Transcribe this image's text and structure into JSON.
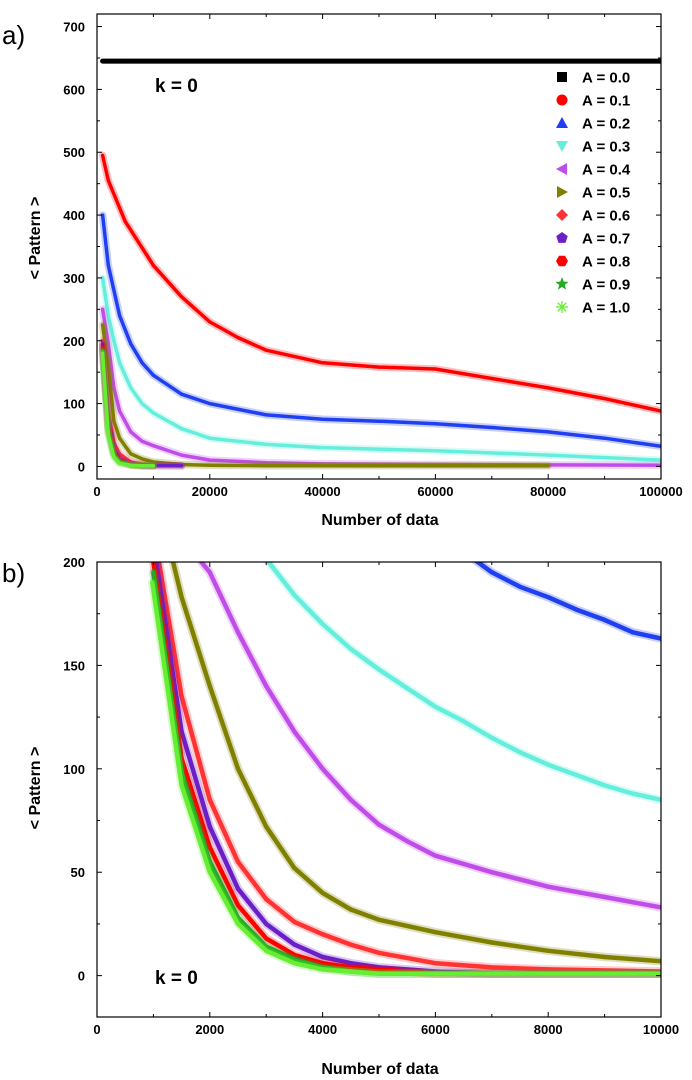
{
  "chart_data": [
    {
      "panel": "a)",
      "type": "line",
      "annotation": "k = 0",
      "xlabel": "Number of data",
      "ylabel": "< Pattern >",
      "xlim": [
        0,
        100000
      ],
      "ylim": [
        -20,
        720
      ],
      "xticks": [
        0,
        20000,
        40000,
        60000,
        80000,
        100000
      ],
      "xtick_labels": [
        "0",
        "20000",
        "40000",
        "60000",
        "80000",
        "100000"
      ],
      "yticks": [
        0,
        100,
        200,
        300,
        400,
        500,
        600,
        700
      ],
      "ytick_labels": [
        "0",
        "100",
        "200",
        "300",
        "400",
        "500",
        "600",
        "700"
      ],
      "legend_position": "top-right",
      "series": [
        {
          "name": "A = 0.0",
          "label": "A = 0.0",
          "color": "#000000",
          "marker": "square",
          "x": [
            1000,
            100000
          ],
          "y": [
            645,
            645
          ]
        },
        {
          "name": "A = 0.1",
          "label": "A = 0.1",
          "color": "#ff0000",
          "marker": "circle",
          "x": [
            1000,
            2000,
            5000,
            10000,
            15000,
            20000,
            25000,
            30000,
            40000,
            50000,
            60000,
            70000,
            80000,
            90000,
            100000
          ],
          "y": [
            495,
            455,
            390,
            320,
            270,
            230,
            205,
            185,
            165,
            158,
            155,
            140,
            125,
            108,
            88
          ]
        },
        {
          "name": "A = 0.2",
          "label": "A = 0.2",
          "color": "#1f3ff0",
          "marker": "triangle-up",
          "x": [
            1000,
            2000,
            4000,
            6000,
            8000,
            10000,
            15000,
            20000,
            30000,
            40000,
            50000,
            60000,
            70000,
            80000,
            90000,
            100000
          ],
          "y": [
            400,
            320,
            240,
            195,
            165,
            145,
            115,
            100,
            82,
            75,
            72,
            68,
            62,
            55,
            45,
            32
          ]
        },
        {
          "name": "A = 0.3",
          "label": "A = 0.3",
          "color": "#66eedd",
          "marker": "triangle-down",
          "x": [
            1000,
            2000,
            3000,
            4000,
            6000,
            8000,
            10000,
            15000,
            20000,
            30000,
            40000,
            60000,
            80000,
            100000
          ],
          "y": [
            300,
            240,
            200,
            165,
            125,
            100,
            85,
            60,
            45,
            35,
            30,
            25,
            18,
            10
          ]
        },
        {
          "name": "A = 0.4",
          "label": "A = 0.4",
          "color": "#c04de8",
          "marker": "triangle-left",
          "x": [
            1000,
            2000,
            3000,
            4000,
            6000,
            8000,
            10000,
            15000,
            20000,
            30000,
            40000,
            60000,
            100000
          ],
          "y": [
            250,
            195,
            125,
            88,
            55,
            40,
            33,
            18,
            10,
            6,
            4,
            3,
            2
          ]
        },
        {
          "name": "A = 0.5",
          "label": "A = 0.5",
          "color": "#808000",
          "marker": "triangle-right",
          "x": [
            1000,
            2000,
            3000,
            4000,
            6000,
            8000,
            10000,
            15000,
            20000,
            30000,
            40000,
            60000,
            80000
          ],
          "y": [
            225,
            160,
            72,
            45,
            20,
            12,
            7,
            3,
            2,
            1,
            1,
            1,
            1
          ]
        },
        {
          "name": "A = 0.6",
          "label": "A = 0.6",
          "color": "#ff3333",
          "marker": "diamond",
          "x": [
            1000,
            2000,
            3000,
            4000,
            6000,
            8000,
            10000,
            15000
          ],
          "y": [
            200,
            85,
            38,
            20,
            7,
            3,
            2,
            1
          ]
        },
        {
          "name": "A = 0.7",
          "label": "A = 0.7",
          "color": "#6a1fc8",
          "marker": "pentagon",
          "x": [
            1000,
            2000,
            3000,
            4000,
            6000,
            8000,
            10000,
            15000
          ],
          "y": [
            195,
            75,
            28,
            12,
            4,
            2,
            1,
            1
          ]
        },
        {
          "name": "A = 0.8",
          "label": "A = 0.8",
          "color": "#ff0000",
          "marker": "hexagon",
          "x": [
            1000,
            2000,
            3000,
            4000,
            6000,
            8000,
            10000
          ],
          "y": [
            190,
            62,
            22,
            9,
            3,
            1,
            1
          ]
        },
        {
          "name": "A = 0.9",
          "label": "A = 0.9",
          "color": "#22aa22",
          "marker": "star",
          "x": [
            1000,
            2000,
            3000,
            4000,
            6000,
            8000,
            10000
          ],
          "y": [
            185,
            55,
            18,
            7,
            2,
            1,
            1
          ]
        },
        {
          "name": "A = 1.0",
          "label": "A = 1.0",
          "color": "#66ee33",
          "marker": "asterisk",
          "x": [
            1000,
            2000,
            3000,
            4000,
            6000,
            8000,
            10000
          ],
          "y": [
            180,
            50,
            15,
            5,
            2,
            1,
            1
          ]
        }
      ]
    },
    {
      "panel": "b)",
      "type": "line",
      "annotation": "k = 0",
      "xlabel": "Number of data",
      "ylabel": "< Pattern >",
      "xlim": [
        0,
        10000
      ],
      "ylim": [
        -20,
        200
      ],
      "xticks": [
        0,
        2000,
        4000,
        6000,
        8000,
        10000
      ],
      "xtick_labels": [
        "0",
        "2000",
        "4000",
        "6000",
        "8000",
        "10000"
      ],
      "yticks": [
        0,
        50,
        100,
        150,
        200
      ],
      "ytick_labels": [
        "0",
        "50",
        "100",
        "150",
        "200"
      ],
      "series": [
        {
          "name": "A = 0.2",
          "color": "#1f3ff0",
          "x": [
            6500,
            7000,
            7500,
            8000,
            8500,
            9000,
            9500,
            10000
          ],
          "y": [
            205,
            195,
            188,
            183,
            177,
            172,
            166,
            163
          ]
        },
        {
          "name": "A = 0.3",
          "color": "#66eedd",
          "x": [
            2900,
            3500,
            4000,
            4500,
            5000,
            5500,
            6000,
            6500,
            7000,
            7500,
            8000,
            8500,
            9000,
            9500,
            10000
          ],
          "y": [
            205,
            184,
            170,
            158,
            148,
            139,
            130,
            123,
            115,
            108,
            102,
            97,
            92,
            88,
            85
          ]
        },
        {
          "name": "A = 0.4",
          "color": "#c04de8",
          "x": [
            1850,
            2000,
            2500,
            3000,
            3500,
            4000,
            4500,
            5000,
            5500,
            6000,
            7000,
            8000,
            9000,
            10000
          ],
          "y": [
            200,
            195,
            166,
            140,
            118,
            100,
            85,
            73,
            65,
            58,
            50,
            43,
            38,
            33
          ]
        },
        {
          "name": "A = 0.5",
          "color": "#808000",
          "x": [
            1350,
            1500,
            2000,
            2500,
            3000,
            3500,
            4000,
            4500,
            5000,
            6000,
            7000,
            8000,
            9000,
            10000
          ],
          "y": [
            200,
            183,
            140,
            100,
            72,
            52,
            40,
            32,
            27,
            21,
            16,
            12,
            9,
            7
          ]
        },
        {
          "name": "A = 0.6",
          "color": "#ff3333",
          "x": [
            1100,
            1500,
            2000,
            2500,
            3000,
            3500,
            4000,
            4500,
            5000,
            6000,
            7000,
            8000,
            10000
          ],
          "y": [
            200,
            135,
            85,
            55,
            37,
            26,
            20,
            15,
            11,
            6,
            4,
            3,
            2
          ]
        },
        {
          "name": "A = 0.7",
          "color": "#6a1fc8",
          "x": [
            1050,
            1500,
            2000,
            2500,
            3000,
            3500,
            4000,
            4500,
            5000,
            6000,
            7000,
            8000,
            10000
          ],
          "y": [
            200,
            118,
            72,
            42,
            25,
            15,
            9,
            6,
            4,
            2,
            1,
            1,
            1
          ]
        },
        {
          "name": "A = 0.8",
          "color": "#ff0000",
          "x": [
            1000,
            1500,
            2000,
            2500,
            3000,
            3500,
            4000,
            4500,
            5000,
            6000,
            8000,
            10000
          ],
          "y": [
            200,
            105,
            62,
            34,
            18,
            10,
            6,
            4,
            3,
            1,
            1,
            1
          ]
        },
        {
          "name": "A = 0.9",
          "color": "#22aa22",
          "x": [
            1000,
            1500,
            2000,
            2500,
            3000,
            3500,
            4000,
            4500,
            5000,
            6000,
            8000,
            10000
          ],
          "y": [
            195,
            98,
            55,
            28,
            14,
            8,
            4,
            2,
            1,
            1,
            1,
            1
          ]
        },
        {
          "name": "A = 1.0",
          "color": "#66ee33",
          "x": [
            980,
            1500,
            2000,
            2500,
            3000,
            3500,
            4000,
            4500,
            5000,
            6000,
            8000,
            10000
          ],
          "y": [
            190,
            92,
            50,
            25,
            12,
            6,
            3,
            2,
            1,
            1,
            1,
            1
          ]
        }
      ]
    }
  ]
}
